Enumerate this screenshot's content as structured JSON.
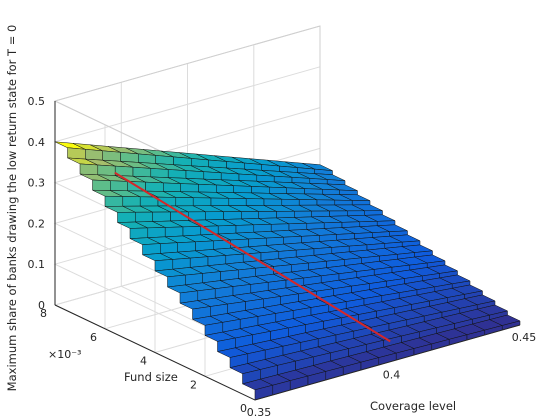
{
  "chart_data": {
    "type": "surface",
    "title": "",
    "xlabel": "Coverage level",
    "ylabel": "Fund size",
    "zlabel": "Maximum share of banks drawing the low return state for T = 0",
    "y_exponent_label": "×10⁻³",
    "xlim": [
      0.35,
      0.45
    ],
    "ylim": [
      0,
      0.008
    ],
    "zlim": [
      0,
      0.5
    ],
    "x_ticks": [
      "0.35",
      "0.4",
      "0.45"
    ],
    "y_ticks": [
      "0",
      "2",
      "4",
      "6",
      "8"
    ],
    "z_ticks": [
      "0",
      "0.1",
      "0.2",
      "0.3",
      "0.4",
      "0.5"
    ],
    "grid": true,
    "colormap": "parula",
    "surface": {
      "coverage": [
        0.35,
        0.3567,
        0.3633,
        0.37,
        0.3767,
        0.3833,
        0.39,
        0.3967,
        0.4033,
        0.41,
        0.4167,
        0.4233,
        0.43,
        0.4367,
        0.4433,
        0.45
      ],
      "fund_size": [
        0.0,
        0.0005,
        0.001,
        0.0015,
        0.002,
        0.0025,
        0.003,
        0.0035,
        0.004,
        0.0045,
        0.005,
        0.0055,
        0.006,
        0.0065,
        0.007,
        0.0075,
        0.008
      ],
      "z_at_min_coverage": [
        0.0,
        0.025,
        0.05,
        0.075,
        0.1,
        0.125,
        0.15,
        0.175,
        0.2,
        0.225,
        0.25,
        0.275,
        0.3,
        0.325,
        0.35,
        0.375,
        0.4
      ],
      "z_at_max_coverage": [
        0.0,
        0.01,
        0.02,
        0.03,
        0.04,
        0.05,
        0.06,
        0.07,
        0.08,
        0.09,
        0.1,
        0.11,
        0.12,
        0.13,
        0.14,
        0.15,
        0.16
      ]
    },
    "red_line": {
      "coverage": [
        0.365,
        0.369,
        0.373,
        0.377,
        0.381,
        0.385,
        0.389,
        0.393,
        0.397,
        0.401
      ],
      "fund_size": [
        0.0072,
        0.0064,
        0.0056,
        0.0048,
        0.004,
        0.0032,
        0.0024,
        0.0016,
        0.0008,
        0.0
      ],
      "z": [
        0.32,
        0.29,
        0.26,
        0.23,
        0.2,
        0.17,
        0.14,
        0.11,
        0.08,
        0.05
      ],
      "color": "#d62728"
    }
  }
}
